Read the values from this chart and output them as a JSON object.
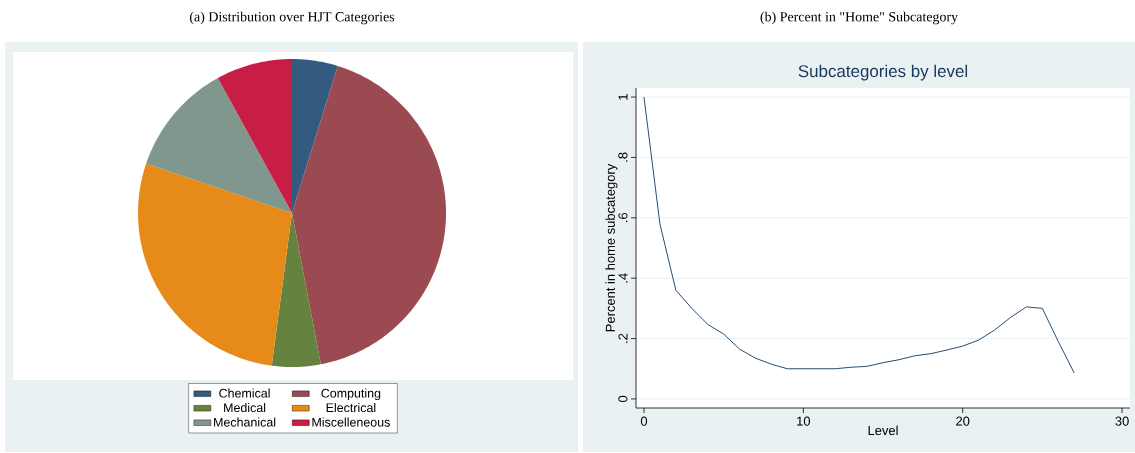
{
  "chart_data": [
    {
      "type": "pie",
      "title": "(a) Distribution over HJT Categories",
      "categories": [
        "Chemical",
        "Computing",
        "Medical",
        "Electrical",
        "Mechanical",
        "Miscelleneous"
      ],
      "values": [
        4.8,
        42.2,
        5.1,
        28.1,
        11.8,
        8.0
      ],
      "colors": [
        "#335b80",
        "#9a4a50",
        "#66823f",
        "#e68a1a",
        "#7f978c",
        "#c81e45"
      ],
      "legend": "bottom"
    },
    {
      "type": "line",
      "title": "(b) Percent in \"Home\" Subcategory",
      "subtitle": "Subcategories by level",
      "xlabel": "Level",
      "ylabel": "Percent in home subcategory",
      "x": [
        0,
        1,
        2,
        3,
        4,
        5,
        6,
        7,
        8,
        9,
        10,
        11,
        12,
        13,
        14,
        15,
        16,
        17,
        18,
        19,
        20,
        21,
        22,
        23,
        24,
        25,
        26,
        27
      ],
      "series": [
        {
          "color": "#2a4d70",
          "values": [
            1.0,
            0.58,
            0.36,
            0.3,
            0.247,
            0.215,
            0.165,
            0.135,
            0.115,
            0.1,
            0.1,
            0.1,
            0.1,
            0.105,
            0.108,
            0.12,
            0.13,
            0.143,
            0.15,
            0.162,
            0.175,
            0.195,
            0.228,
            0.27,
            0.305,
            0.3,
            0.19,
            0.086
          ]
        }
      ],
      "xlim": [
        -0.5,
        30.5
      ],
      "ylim": [
        -0.03,
        1.03
      ],
      "xticks": [
        0,
        10,
        20,
        30
      ],
      "yticks": [
        0,
        {
          "value": 0.2,
          "label": ".2"
        },
        {
          "value": 0.4,
          "label": ".4"
        },
        {
          "value": 0.6,
          "label": ".6"
        },
        {
          "value": 0.8,
          "label": ".8"
        },
        1
      ],
      "grid": "y"
    }
  ]
}
